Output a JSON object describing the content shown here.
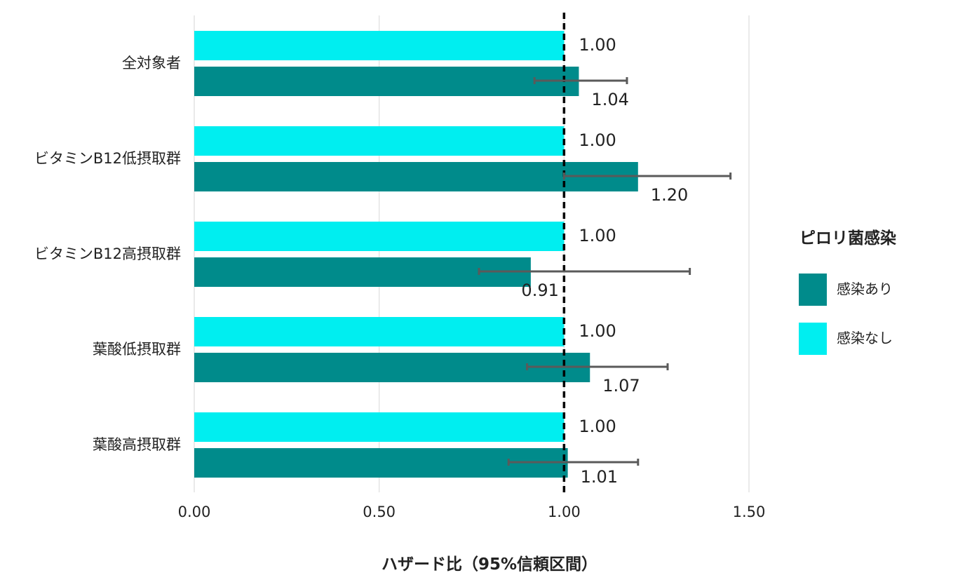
{
  "chart_data": {
    "type": "bar",
    "orientation": "horizontal",
    "categories": [
      "全対象者",
      "ビタミンB12低摂取群",
      "ビタミンB12高摂取群",
      "葉酸低摂取群",
      "葉酸高摂取群"
    ],
    "series": [
      {
        "name": "感染なし",
        "color": "#00EEF0",
        "values": [
          1.0,
          1.0,
          1.0,
          1.0,
          1.0
        ],
        "labels": [
          "1.00",
          "1.00",
          "1.00",
          "1.00",
          "1.00"
        ]
      },
      {
        "name": "感染あり",
        "color": "#008B8B",
        "values": [
          1.04,
          1.2,
          0.91,
          1.07,
          1.01
        ],
        "labels": [
          "1.04",
          "1.20",
          "0.91",
          "1.07",
          "1.01"
        ],
        "ci_low": [
          0.92,
          1.0,
          0.77,
          0.9,
          0.85
        ],
        "ci_high": [
          1.17,
          1.45,
          1.34,
          1.28,
          1.2
        ]
      }
    ],
    "xlabel": "ハザード比（95%信頼区間）",
    "xlim": [
      0,
      1.5
    ],
    "xticks": [
      0,
      0.5,
      1.0,
      1.5
    ],
    "xtick_labels": [
      "0.00",
      "0.50",
      "1.00",
      "1.50"
    ],
    "reference_line": 1.0,
    "grid": true,
    "legend": {
      "title": "ピロリ菌感染",
      "position": "right",
      "items": [
        {
          "label": "感染あり",
          "color": "#008B8B"
        },
        {
          "label": "感染なし",
          "color": "#00EEF0"
        }
      ]
    }
  }
}
